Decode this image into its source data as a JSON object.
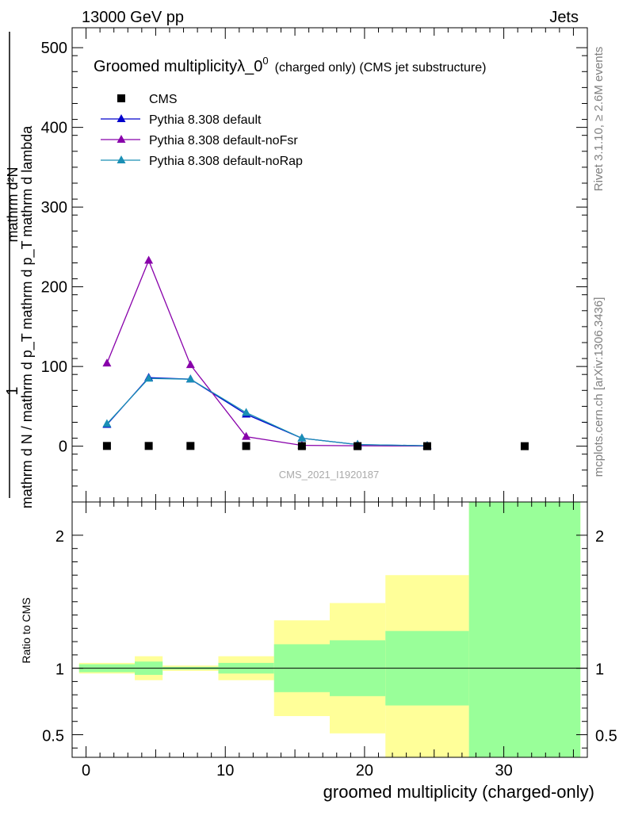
{
  "header": {
    "energy": "13000 GeV pp",
    "process": "Jets"
  },
  "side_text": {
    "rivet": "Rivet 3.1.10, ≥ 2.6M events",
    "mcplots": "mcplots.cern.ch [arXiv:1306.3436]"
  },
  "chart_data": {
    "type": "line",
    "title": "Groomed multiplicityλ_0",
    "title_sup": "0",
    "title_suffix": "(charged only) (CMS jet substructure)",
    "watermark": "CMS_2021_I1920187",
    "ylabel_top": "1",
    "ylabel_num": "mathrm d²N",
    "ylabel_den": "mathrm d N / mathrm d p_T mathrm d p_T mathrm d lambda",
    "xlabel": "groomed multiplicity (charged-only)",
    "xlim": [
      -1,
      36
    ],
    "ylim": [
      -70,
      525
    ],
    "x_ticks": [
      0,
      10,
      20,
      30
    ],
    "y_ticks": [
      0,
      100,
      200,
      300,
      400,
      500
    ],
    "x_tick_labels": [
      "0",
      "10",
      "20",
      "30"
    ],
    "y_tick_labels": [
      "0",
      "100",
      "200",
      "300",
      "400",
      "500"
    ],
    "legend": {
      "position": "top-left",
      "entries": [
        "CMS",
        "Pythia 8.308 default",
        "Pythia 8.308 default-noFsr",
        "Pythia 8.308 default-noRap"
      ]
    },
    "series": [
      {
        "name": "CMS",
        "marker": "square",
        "color": "#000000",
        "x": [
          1.5,
          4.5,
          7.5,
          11.5,
          15.5,
          19.5,
          24.5,
          31.5
        ],
        "y": [
          0.3,
          0.3,
          0.3,
          0.2,
          0.1,
          0.05,
          0.02,
          0.01
        ]
      },
      {
        "name": "Pythia 8.308 default",
        "marker": "triangle",
        "color": "#0000cc",
        "x": [
          1.5,
          4.5,
          7.5,
          11.5,
          15.5,
          19.5,
          24.5
        ],
        "y": [
          27,
          86,
          84,
          40,
          10,
          2,
          0.5
        ]
      },
      {
        "name": "Pythia 8.308 default-noFsr",
        "marker": "triangle",
        "color": "#8800aa",
        "x": [
          1.5,
          4.5,
          7.5,
          11.5,
          15.5,
          19.5,
          24.5
        ],
        "y": [
          104,
          233,
          102,
          12,
          1,
          0.5,
          0.1
        ]
      },
      {
        "name": "Pythia 8.308 default-noRap",
        "marker": "triangle",
        "color": "#1a8fb5",
        "x": [
          1.5,
          4.5,
          7.5,
          11.5,
          15.5,
          19.5,
          24.5
        ],
        "y": [
          28,
          85,
          84,
          42,
          10,
          2,
          0.5
        ]
      }
    ],
    "ratio": {
      "ylabel": "Ratio to CMS",
      "ylim": [
        0.33,
        2.25
      ],
      "y_ticks": [
        0.5,
        1,
        2
      ],
      "y_tick_labels": [
        "0.5",
        "1",
        "2"
      ],
      "bands": [
        {
          "x0": -0.5,
          "x1": 3.5,
          "yellow": [
            0.96,
            1.04
          ],
          "green": [
            0.97,
            1.03
          ]
        },
        {
          "x0": 3.5,
          "x1": 5.5,
          "yellow": [
            0.91,
            1.09
          ],
          "green": [
            0.95,
            1.05
          ]
        },
        {
          "x0": 5.5,
          "x1": 9.5,
          "yellow": [
            0.98,
            1.02
          ],
          "green": [
            0.99,
            1.01
          ]
        },
        {
          "x0": 9.5,
          "x1": 13.5,
          "yellow": [
            0.91,
            1.09
          ],
          "green": [
            0.96,
            1.04
          ]
        },
        {
          "x0": 13.5,
          "x1": 17.5,
          "yellow": [
            0.64,
            1.36
          ],
          "green": [
            0.82,
            1.18
          ]
        },
        {
          "x0": 17.5,
          "x1": 21.5,
          "yellow": [
            0.51,
            1.49
          ],
          "green": [
            0.79,
            1.21
          ]
        },
        {
          "x0": 21.5,
          "x1": 27.5,
          "yellow": [
            0.3,
            1.7
          ],
          "green": [
            0.72,
            1.28
          ]
        },
        {
          "x0": 27.5,
          "x1": 35.5,
          "yellow": [
            0.3,
            2.5
          ],
          "green": [
            0.3,
            2.5
          ]
        }
      ]
    }
  }
}
